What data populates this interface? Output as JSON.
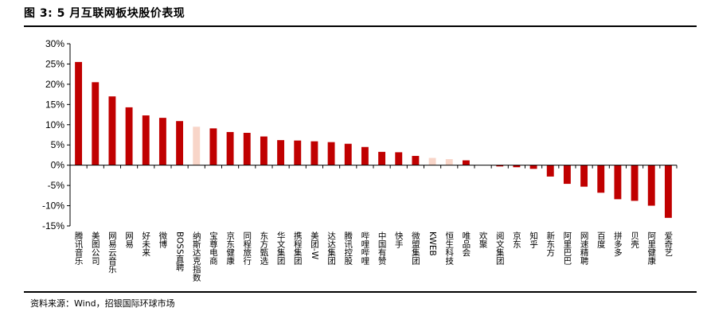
{
  "figure": {
    "title": "图 3: 5 月互联网板块股价表现",
    "source": "资料来源：Wind，招银国际环球市场"
  },
  "colors": {
    "bar": "#C00000",
    "highlight": "#F8D5C8",
    "axis": "#000000"
  },
  "chart_data": {
    "type": "bar",
    "title": "",
    "xlabel": "",
    "ylabel": "",
    "ylim": [
      -15,
      30
    ],
    "yticks": [
      -15,
      -10,
      -5,
      0,
      5,
      10,
      15,
      20,
      25,
      30
    ],
    "ytick_labels": [
      "-15%",
      "-10%",
      "-5%",
      "0%",
      "5%",
      "10%",
      "15%",
      "20%",
      "25%",
      "30%"
    ],
    "grid": false,
    "categories": [
      "腾讯音乐",
      "美图公司",
      "网易云音乐",
      "网易",
      "好未来",
      "微博",
      "BOSS直聘",
      "纳斯达克指数",
      "宝尊电商",
      "京东健康",
      "同程旅行",
      "东方甄选",
      "华文集团",
      "携程集团",
      "美团-W",
      "达达集团",
      "腾讯控股",
      "哔哩哔哩",
      "中国有赞",
      "快手",
      "微盟集团",
      "KWEB",
      "恒生科技",
      "唯品会",
      "欢聚",
      "阅文集团",
      "京东",
      "知乎",
      "新东方",
      "阿里巴巴",
      "网速精聘",
      "百度",
      "拼多多",
      "贝壳",
      "阿里健康",
      "爱奇艺"
    ],
    "values": [
      25.5,
      20.5,
      17.0,
      14.3,
      12.3,
      11.7,
      10.9,
      9.5,
      9.1,
      8.2,
      8.0,
      7.1,
      6.2,
      6.1,
      5.9,
      5.7,
      5.3,
      4.5,
      3.3,
      3.2,
      2.3,
      1.8,
      1.5,
      1.2,
      0.0,
      -0.3,
      -0.5,
      -0.9,
      -2.8,
      -4.6,
      -5.3,
      -6.8,
      -8.4,
      -8.8,
      -10.0,
      -13.0
    ],
    "highlight_categories": [
      "纳斯达克指数",
      "KWEB",
      "恒生科技"
    ]
  }
}
